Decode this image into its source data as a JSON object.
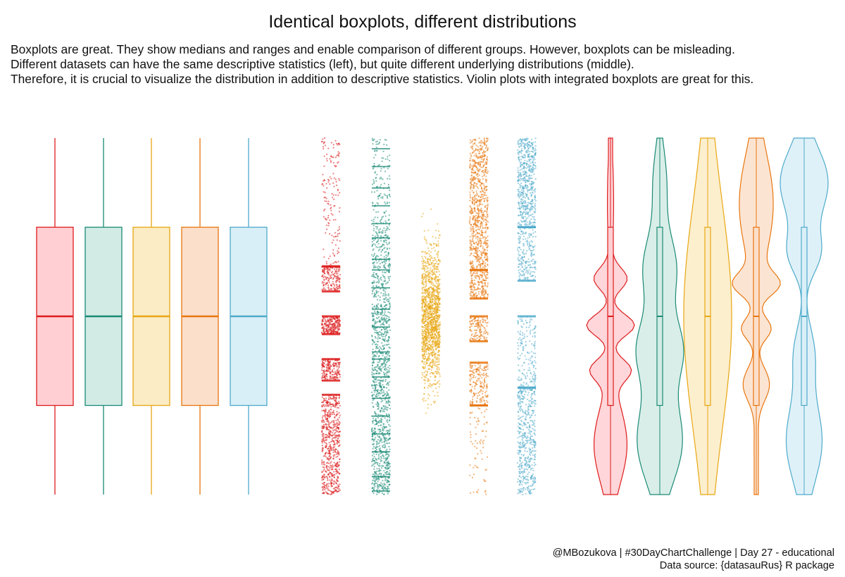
{
  "title": "Identical boxplots, different distributions",
  "subtitle": [
    "Boxplots are great. They show medians and ranges and enable comparison of different groups. However, boxplots can be misleading.",
    "Different datasets can have the same descriptive statistics (left), but quite different underlying distributions (middle).",
    "Therefore, it is crucial to visualize the distribution in addition to descriptive statistics. Violin plots with integrated boxplots are great for this."
  ],
  "caption": [
    "@MBozukova | #30DayChartChallenge | Day 27 - educational",
    "Data source: {datasauRus} R package"
  ],
  "chart_data": {
    "type": "boxplot-jitter-violin",
    "panels": [
      "boxplot",
      "jitter",
      "violin"
    ],
    "y_range": [
      0,
      100
    ],
    "groups": [
      {
        "name": "red",
        "color": "#dd1c1c",
        "fill": "#ffcfd3",
        "min": 0,
        "q1": 25,
        "median": 50,
        "q3": 75,
        "max": 100,
        "clusters": [
          [
            0,
            28,
            0.45
          ],
          [
            32,
            38,
            0.14
          ],
          [
            45,
            50,
            0.18
          ],
          [
            57,
            64,
            0.12
          ],
          [
            64,
            100,
            0.11
          ]
        ]
      },
      {
        "name": "green",
        "color": "#1a8a76",
        "fill": "#d2ebe4",
        "min": 0,
        "q1": 25,
        "median": 50,
        "q3": 75,
        "max": 100,
        "clusters": [
          [
            0,
            30,
            0.4
          ],
          [
            30,
            52,
            0.28
          ],
          [
            52,
            75,
            0.22
          ],
          [
            75,
            100,
            0.1
          ]
        ],
        "bands": [
          1,
          5,
          12,
          17,
          22,
          27,
          33,
          38,
          40,
          47,
          52,
          58,
          63,
          66,
          72,
          76,
          81,
          86,
          92,
          97
        ]
      },
      {
        "name": "yellow",
        "color": "#e8a613",
        "fill": "#fbecc5",
        "min": 0,
        "q1": 25,
        "median": 50,
        "q3": 75,
        "max": 100,
        "clusters": [
          [
            0,
            100,
            1.0
          ]
        ],
        "bell": true
      },
      {
        "name": "orange",
        "color": "#e8760f",
        "fill": "#fbdfcb",
        "min": 0,
        "q1": 25,
        "median": 50,
        "q3": 75,
        "max": 100,
        "clusters": [
          [
            0,
            25,
            0.05
          ],
          [
            25,
            37,
            0.14
          ],
          [
            43,
            50,
            0.1
          ],
          [
            55,
            63,
            0.14
          ],
          [
            63,
            100,
            0.57
          ]
        ]
      },
      {
        "name": "blue",
        "color": "#4eaacb",
        "fill": "#d9eff7",
        "min": 0,
        "q1": 25,
        "median": 50,
        "q3": 75,
        "max": 100,
        "clusters": [
          [
            0,
            30,
            0.35
          ],
          [
            30,
            50,
            0.12
          ],
          [
            60,
            75,
            0.14
          ],
          [
            75,
            100,
            0.39
          ]
        ]
      }
    ]
  }
}
